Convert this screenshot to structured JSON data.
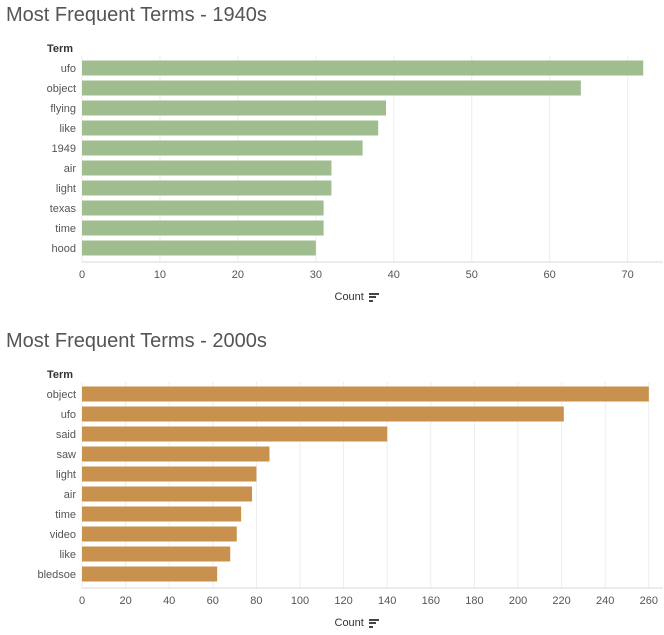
{
  "chart_data": [
    {
      "type": "bar",
      "orientation": "horizontal",
      "title": "Most Frequent Terms - 1940s",
      "ylabel": "Term",
      "xlabel": "Count",
      "categories": [
        "ufo",
        "object",
        "flying",
        "like",
        "1949",
        "air",
        "light",
        "texas",
        "time",
        "hood"
      ],
      "values": [
        72,
        64,
        39,
        38,
        36,
        32,
        32,
        31,
        31,
        30
      ],
      "xlim": [
        0,
        73
      ],
      "xticks": [
        0,
        10,
        20,
        30,
        40,
        50,
        60,
        70
      ],
      "bar_color": "#9fbd8f",
      "grid": "vertical",
      "sort_icon": "sort-descending-icon"
    },
    {
      "type": "bar",
      "orientation": "horizontal",
      "title": "Most Frequent Terms - 2000s",
      "ylabel": "Term",
      "xlabel": "Count",
      "categories": [
        "object",
        "ufo",
        "said",
        "saw",
        "light",
        "air",
        "time",
        "video",
        "like",
        "bledsoe"
      ],
      "values": [
        260,
        221,
        140,
        86,
        80,
        78,
        73,
        71,
        68,
        62
      ],
      "xlim": [
        0,
        261
      ],
      "xticks": [
        0,
        20,
        40,
        60,
        80,
        100,
        120,
        140,
        160,
        180,
        200,
        220,
        240,
        260
      ],
      "bar_color": "#c9914e",
      "grid": "vertical",
      "sort_icon": "sort-descending-icon"
    }
  ]
}
